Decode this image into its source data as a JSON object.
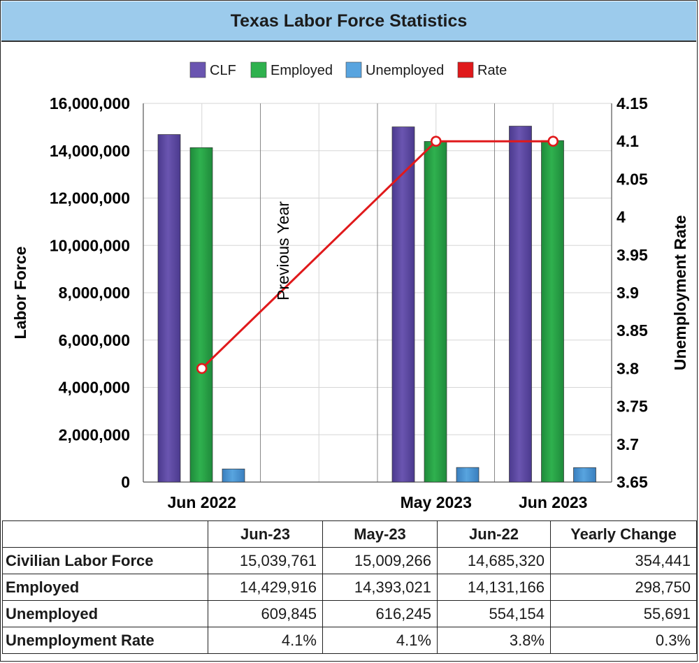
{
  "title": "Texas Labor Force Statistics",
  "colors": {
    "title_bg": "#9ccbec",
    "clf": "#6a55b0",
    "employed": "#2fb14e",
    "unemployed": "#58a4df",
    "rate": "#e0191b"
  },
  "chart_data": {
    "type": "bar",
    "categories": [
      "Jun 2022",
      "",
      "May 2023",
      "Jun 2023"
    ],
    "series": [
      {
        "name": "CLF",
        "axis": "left",
        "values": [
          14685320,
          null,
          15009266,
          15039761
        ]
      },
      {
        "name": "Employed",
        "axis": "left",
        "values": [
          14131166,
          null,
          14393021,
          14429916
        ]
      },
      {
        "name": "Unemployed",
        "axis": "left",
        "values": [
          554154,
          null,
          616245,
          609845
        ]
      },
      {
        "name": "Rate",
        "type": "line",
        "axis": "right",
        "values": [
          3.8,
          null,
          4.1,
          4.1
        ]
      }
    ],
    "ylabel": "Labor Force",
    "y2label": "Unemployment Rate",
    "ylim": [
      0,
      16000000
    ],
    "y2lim": [
      3.65,
      4.15
    ],
    "yticks": [
      "0",
      "2,000,000",
      "4,000,000",
      "6,000,000",
      "8,000,000",
      "10,000,000",
      "12,000,000",
      "14,000,000",
      "16,000,000"
    ],
    "y2ticks": [
      "3.65",
      "3.7",
      "3.75",
      "3.8",
      "3.85",
      "3.9",
      "3.95",
      "4",
      "4.05",
      "4.1",
      "4.15"
    ],
    "annotation": "Previous Year",
    "legend_position": "top-center",
    "grid": true
  },
  "table": {
    "headers": [
      "",
      "Jun-23",
      "May-23",
      "Jun-22",
      "Yearly Change"
    ],
    "rows": [
      {
        "label": "Civilian Labor Force",
        "values": [
          "15,039,761",
          "15,009,266",
          "14,685,320",
          "354,441"
        ]
      },
      {
        "label": "Employed",
        "values": [
          "14,429,916",
          "14,393,021",
          "14,131,166",
          "298,750"
        ]
      },
      {
        "label": "Unemployed",
        "values": [
          "609,845",
          "616,245",
          "554,154",
          "55,691"
        ]
      },
      {
        "label": "Unemployment Rate",
        "values": [
          "4.1%",
          "4.1%",
          "3.8%",
          "0.3%"
        ]
      }
    ]
  }
}
